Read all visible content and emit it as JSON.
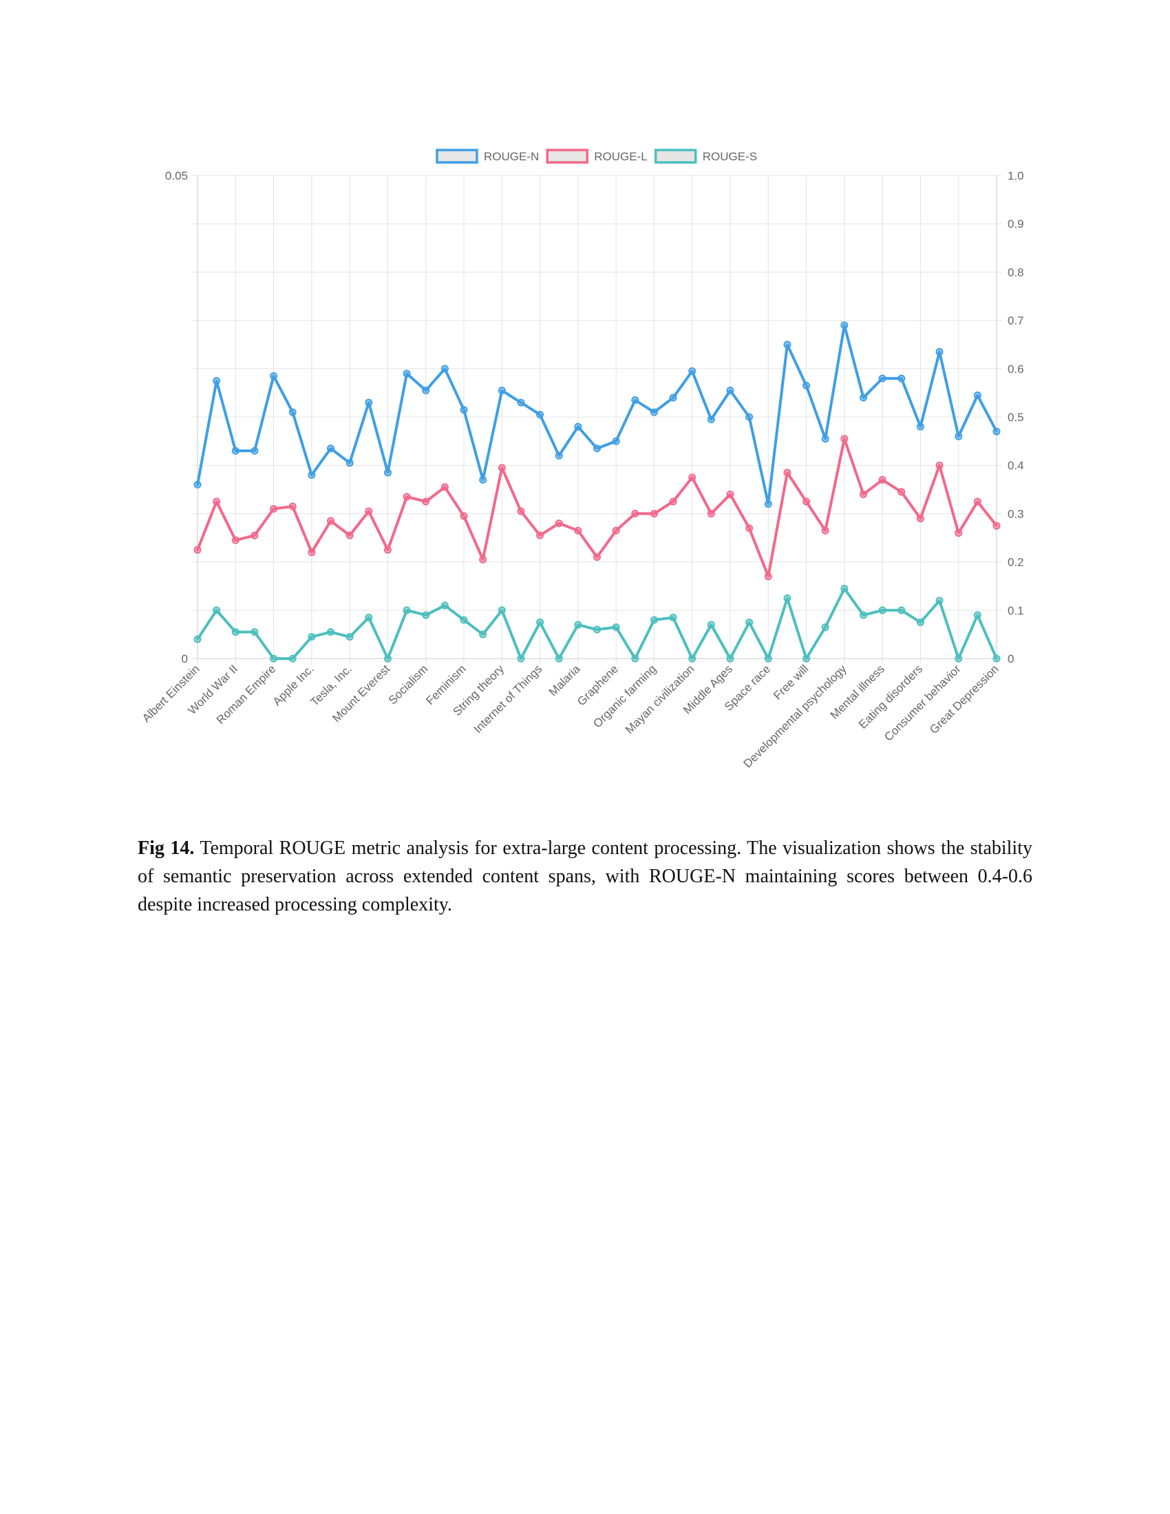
{
  "caption": {
    "label": "Fig 14.",
    "text": "Temporal ROUGE metric analysis for extra-large content processing. The visualization shows the stability of semantic preservation across extended content spans, with ROUGE-N maintaining scores between 0.4-0.6 despite increased processing complexity."
  },
  "chart_data": {
    "type": "line",
    "title": "",
    "xlabel": "",
    "ylabel": "",
    "legend_position": "top-center",
    "grid": true,
    "left_axis": {
      "ylim": [
        0,
        0.05
      ],
      "tick_labels": [
        "0.05",
        "0"
      ]
    },
    "right_axis": {
      "ylim": [
        0,
        1.0
      ],
      "tick_labels": [
        "1.0",
        "0.9",
        "0.8",
        "0.7",
        "0.6",
        "0.5",
        "0.4",
        "0.3",
        "0.2",
        "0.1",
        "0"
      ]
    },
    "categories_count": 43,
    "category_labels": [
      "Albert Einstein",
      "World War II",
      "Roman Empire",
      "Apple Inc.",
      "Tesla, Inc.",
      "Mount Everest",
      "Socialism",
      "Feminism",
      "String theory",
      "Internet of Things",
      "Malaria",
      "Graphene",
      "Organic farming",
      "Mayan civilization",
      "Middle Ages",
      "Space race",
      "Free will",
      "Developmental psychology",
      "Mental illness",
      "Eating disorders",
      "Consumer behavior",
      "Great Depression"
    ],
    "colors": {
      "rouge_n": "#3f9fe4",
      "rouge_l": "#f2688a",
      "rouge_s": "#4cbfbf"
    },
    "series": [
      {
        "name": "ROUGE-N",
        "axis": "right",
        "values": [
          0.36,
          0.575,
          0.43,
          0.43,
          0.585,
          0.51,
          0.38,
          0.435,
          0.405,
          0.53,
          0.385,
          0.59,
          0.555,
          0.6,
          0.515,
          0.37,
          0.555,
          0.53,
          0.505,
          0.42,
          0.48,
          0.435,
          0.45,
          0.535,
          0.51,
          0.54,
          0.595,
          0.495,
          0.555,
          0.5,
          0.32,
          0.65,
          0.565,
          0.455,
          0.69,
          0.54,
          0.58,
          0.58,
          0.48,
          0.635,
          0.46,
          0.545,
          0.47
        ]
      },
      {
        "name": "ROUGE-L",
        "axis": "right",
        "values": [
          0.225,
          0.325,
          0.245,
          0.255,
          0.31,
          0.315,
          0.22,
          0.285,
          0.255,
          0.305,
          0.225,
          0.335,
          0.325,
          0.355,
          0.295,
          0.205,
          0.395,
          0.305,
          0.255,
          0.28,
          0.265,
          0.21,
          0.265,
          0.3,
          0.3,
          0.325,
          0.375,
          0.3,
          0.34,
          0.27,
          0.17,
          0.385,
          0.325,
          0.265,
          0.455,
          0.34,
          0.37,
          0.345,
          0.29,
          0.4,
          0.26,
          0.325,
          0.275
        ]
      },
      {
        "name": "ROUGE-S",
        "axis": "right",
        "values": [
          0.04,
          0.1,
          0.055,
          0.055,
          0,
          0,
          0.045,
          0.055,
          0.045,
          0.085,
          0,
          0.1,
          0.09,
          0.11,
          0.08,
          0.05,
          0.1,
          0,
          0.075,
          0,
          0.07,
          0.06,
          0.065,
          0,
          0.08,
          0.085,
          0,
          0.07,
          0,
          0.075,
          0,
          0.125,
          0,
          0.065,
          0.145,
          0.09,
          0.1,
          0.1,
          0.075,
          0.12,
          0,
          0.09,
          0
        ]
      }
    ]
  }
}
